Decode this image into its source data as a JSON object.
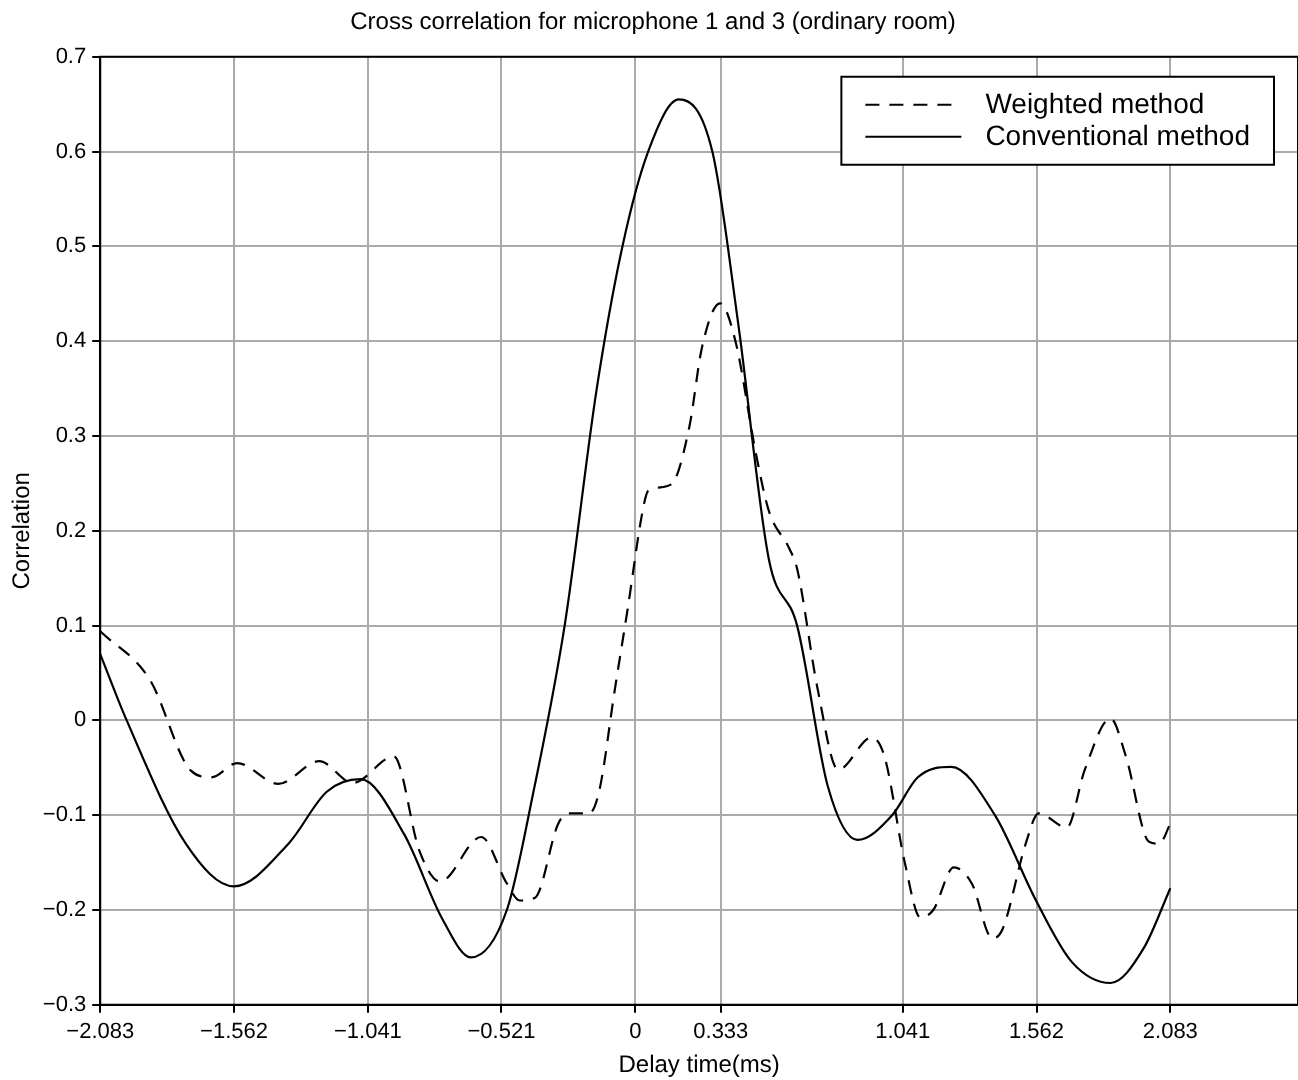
{
  "chart_data": {
    "type": "line",
    "title": "Cross correlation for microphone 1 and 3 (ordinary room)",
    "xlabel": "Delay time(ms)",
    "ylabel": "Correlation",
    "xlim": [
      -2.083,
      2.58
    ],
    "xticks": [
      -2.083,
      -1.562,
      -1.041,
      -0.521,
      0,
      0.333,
      1.041,
      1.562,
      2.083
    ],
    "ylim": [
      -0.3,
      0.7
    ],
    "yticks": [
      -0.3,
      -0.2,
      -0.1,
      0,
      0.1,
      0.2,
      0.3,
      0.4,
      0.5,
      0.6,
      0.7
    ],
    "grid": true,
    "legend": "top right",
    "marker": "none",
    "series": [
      {
        "name": "Weighted method",
        "color": "#000000",
        "line_style": "dashed",
        "x": [
          -2.083,
          -1.89,
          -1.73,
          -1.65,
          -1.55,
          -1.39,
          -1.23,
          -1.1,
          -0.94,
          -0.84,
          -0.76,
          -0.6,
          -0.5,
          -0.45,
          -0.39,
          -0.3,
          -0.26,
          -0.18,
          -0.14,
          -0.08,
          -0.03,
          0.03,
          0.05,
          0.14,
          0.21,
          0.26,
          0.33,
          0.39,
          0.47,
          0.52,
          0.6,
          0.63,
          0.71,
          0.79,
          0.92,
          0.97,
          1.05,
          1.11,
          1.16,
          1.24,
          1.31,
          1.39,
          1.43,
          1.52,
          1.57,
          1.68,
          1.75,
          1.85,
          1.91,
          2.0,
          2.04,
          2.083
        ],
        "values": [
          0.094,
          0.043,
          -0.053,
          -0.06,
          -0.045,
          -0.067,
          -0.043,
          -0.066,
          -0.038,
          -0.138,
          -0.17,
          -0.123,
          -0.172,
          -0.19,
          -0.187,
          -0.109,
          -0.098,
          -0.098,
          -0.074,
          0.032,
          0.117,
          0.223,
          0.242,
          0.249,
          0.309,
          0.394,
          0.44,
          0.4,
          0.281,
          0.221,
          0.181,
          0.16,
          0.033,
          -0.052,
          -0.018,
          -0.038,
          -0.151,
          -0.208,
          -0.2,
          -0.155,
          -0.172,
          -0.23,
          -0.22,
          -0.13,
          -0.098,
          -0.113,
          -0.052,
          0.002,
          -0.038,
          -0.128,
          -0.13,
          -0.109
        ]
      },
      {
        "name": "Conventional method",
        "color": "#000000",
        "line_style": "solid",
        "x": [
          -2.083,
          -1.98,
          -1.75,
          -1.562,
          -1.35,
          -1.2,
          -1.07,
          -0.9,
          -0.75,
          -0.64,
          -0.5,
          -0.4,
          -0.275,
          -0.15,
          -0.05,
          0.05,
          0.17,
          0.3,
          0.4,
          0.52,
          0.63,
          0.75,
          0.865,
          1.0,
          1.1,
          1.23,
          1.4,
          1.56,
          1.7,
          1.85,
          1.98,
          2.083
        ],
        "values": [
          0.07,
          0.0,
          -0.13,
          -0.175,
          -0.13,
          -0.075,
          -0.062,
          -0.12,
          -0.21,
          -0.25,
          -0.2,
          -0.08,
          0.1,
          0.35,
          0.5,
          0.6,
          0.655,
          0.6,
          0.42,
          0.17,
          0.1,
          -0.07,
          -0.126,
          -0.1,
          -0.06,
          -0.049,
          -0.1,
          -0.19,
          -0.255,
          -0.277,
          -0.24,
          -0.177
        ]
      }
    ]
  }
}
